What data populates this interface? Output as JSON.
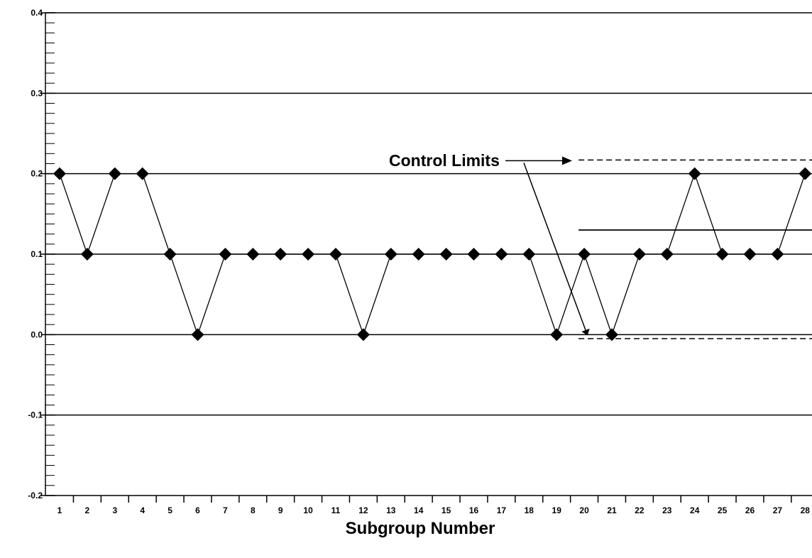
{
  "chart_data": {
    "type": "line",
    "title": "",
    "xlabel": "Subgroup Number",
    "ylabel": "",
    "xlim": [
      0.5,
      28.35
    ],
    "ylim": [
      -0.2,
      0.4
    ],
    "yticks": [
      -0.2,
      -0.1,
      0.0,
      0.1,
      0.2,
      0.3,
      0.4
    ],
    "ytick_labels": [
      "-0.2",
      "-0.1",
      "0.0",
      "0.1",
      "0.2",
      "0.3",
      "0.4"
    ],
    "xtick_labels": [
      "1",
      "2",
      "3",
      "4",
      "5",
      "6",
      "7",
      "8",
      "9",
      "10",
      "11",
      "12",
      "13",
      "14",
      "15",
      "16",
      "17",
      "18",
      "19",
      "20",
      "21",
      "22",
      "23",
      "24",
      "25",
      "26",
      "27",
      "28"
    ],
    "grid": "horizontal",
    "series": [
      {
        "marker": "diamond",
        "color": "#000000",
        "x": [
          1,
          2,
          3,
          4,
          5,
          6,
          7,
          8,
          9,
          10,
          11,
          12,
          13,
          14,
          15,
          16,
          17,
          18,
          19,
          20,
          21,
          22,
          23,
          24,
          25,
          26,
          27,
          28
        ],
        "values": [
          0.2,
          0.1,
          0.2,
          0.2,
          0.1,
          0.0,
          0.1,
          0.1,
          0.1,
          0.1,
          0.1,
          0.0,
          0.1,
          0.1,
          0.1,
          0.1,
          0.1,
          0.1,
          0.0,
          0.1,
          0.0,
          0.1,
          0.1,
          0.2,
          0.1,
          0.1,
          0.1,
          0.2
        ]
      }
    ],
    "center_line": {
      "y": 0.13,
      "x_start": 20
    },
    "control_limits": {
      "ucl": 0.217,
      "lcl": -0.005,
      "x_start": 20
    },
    "annotation": {
      "text": "Control Limits"
    }
  }
}
